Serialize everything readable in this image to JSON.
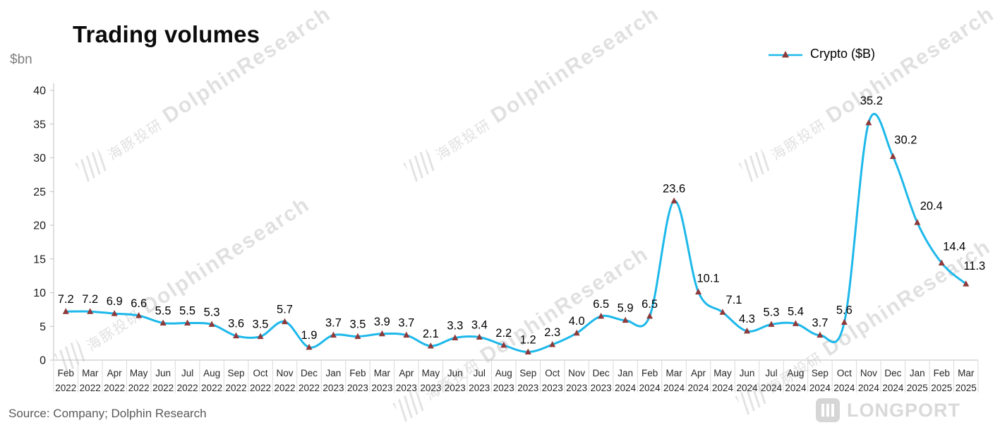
{
  "title": "Trading volumes",
  "y_unit": "$bn",
  "legend": {
    "label": "Crypto ($B)"
  },
  "source": "Source: Company; Dolphin Research",
  "watermark_cn": "海豚投研",
  "watermark_en": "DolphinResearch",
  "logo": "LONGPORT",
  "colors": {
    "line": "#1DB8EA",
    "marker": "#8E3A3A",
    "axis": "#BFBFBF",
    "grid": "#D9D9D9",
    "tick_text": "#1A1A1A",
    "category_text": "#262626",
    "label_text": "#000000"
  },
  "chart_data": {
    "type": "line",
    "title": "Trading volumes",
    "ylabel": "$bn",
    "legend_entries": [
      "Crypto ($B)"
    ],
    "legend_position": "top-right",
    "grid": false,
    "smooth": true,
    "ylim": [
      0,
      40
    ],
    "yticks": [
      0,
      5,
      10,
      15,
      20,
      25,
      30,
      35,
      40
    ],
    "months": [
      "Feb",
      "Mar",
      "Apr",
      "May",
      "Jun",
      "Jul",
      "Aug",
      "Sep",
      "Oct",
      "Nov",
      "Dec",
      "Jan",
      "Feb",
      "Mar",
      "Apr",
      "May",
      "Jun",
      "Jul",
      "Aug",
      "Sep",
      "Oct",
      "Nov",
      "Dec",
      "Jan",
      "Feb",
      "Mar",
      "Apr",
      "May",
      "Jun",
      "Jul",
      "Aug",
      "Sep",
      "Oct",
      "Nov",
      "Dec",
      "Jan",
      "Feb",
      "Mar"
    ],
    "years": [
      "2022",
      "2022",
      "2022",
      "2022",
      "2022",
      "2022",
      "2022",
      "2022",
      "2022",
      "2022",
      "2022",
      "2023",
      "2023",
      "2023",
      "2023",
      "2023",
      "2023",
      "2023",
      "2023",
      "2023",
      "2023",
      "2023",
      "2023",
      "2024",
      "2024",
      "2024",
      "2024",
      "2024",
      "2024",
      "2024",
      "2024",
      "2024",
      "2024",
      "2024",
      "2024",
      "2025",
      "2025",
      "2025"
    ],
    "values": [
      7.2,
      7.2,
      6.9,
      6.6,
      5.5,
      5.5,
      5.3,
      3.6,
      3.5,
      5.7,
      1.9,
      3.7,
      3.5,
      3.9,
      3.7,
      2.1,
      3.3,
      3.4,
      2.2,
      1.2,
      2.3,
      4.0,
      6.5,
      5.9,
      6.5,
      23.6,
      10.1,
      7.1,
      4.3,
      5.3,
      5.4,
      3.7,
      5.6,
      35.2,
      30.2,
      20.4,
      14.4,
      11.3
    ],
    "label_offsets": {
      "26": [
        14,
        -2
      ],
      "27": [
        16,
        0
      ],
      "33": [
        4,
        -14
      ],
      "34": [
        18,
        -6
      ],
      "35": [
        20,
        -6
      ],
      "36": [
        18,
        -6
      ],
      "37": [
        12,
        -8
      ]
    }
  }
}
